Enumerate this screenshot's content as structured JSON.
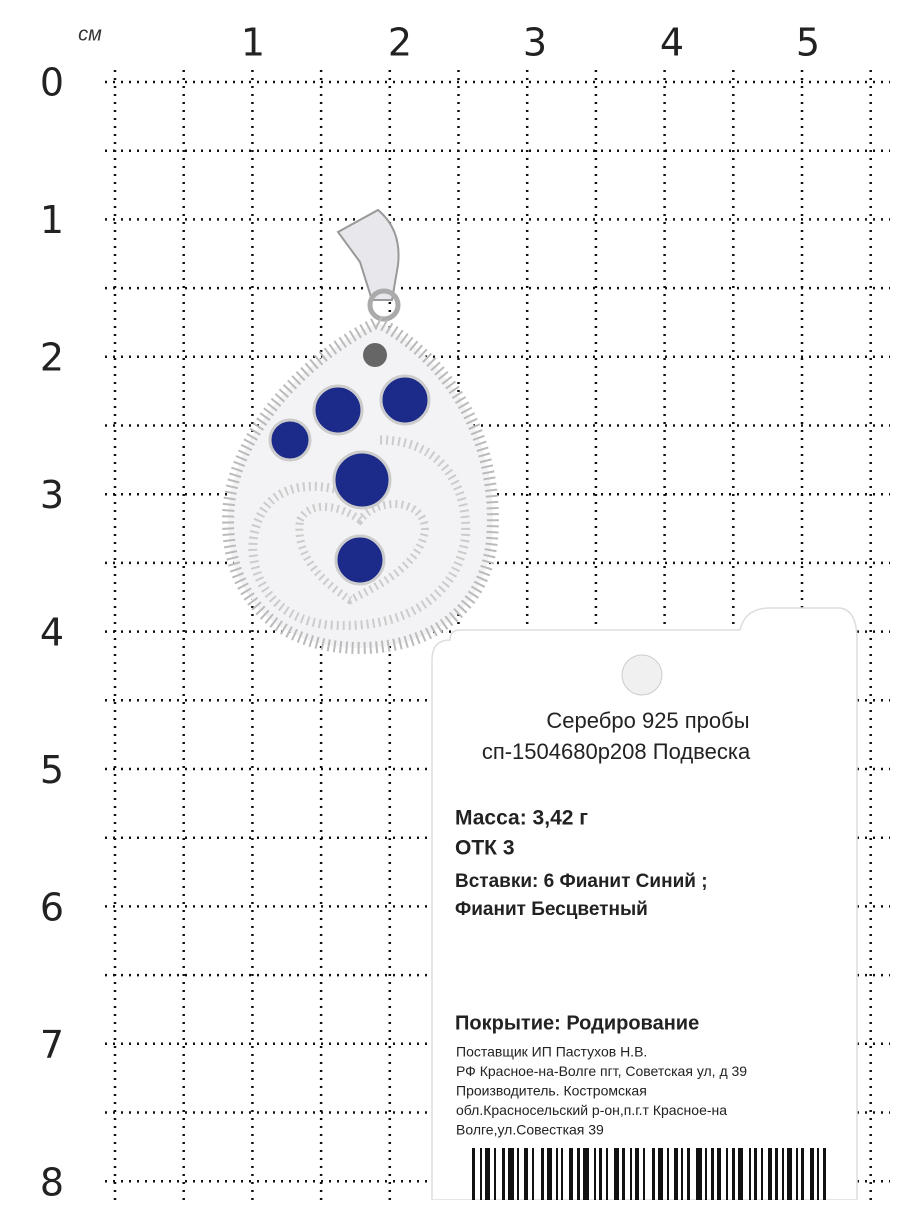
{
  "ruler": {
    "unit": "см",
    "top": [
      "1",
      "2",
      "3",
      "4",
      "5"
    ],
    "left": [
      "0",
      "1",
      "2",
      "3",
      "4",
      "5",
      "6",
      "7",
      "8"
    ]
  },
  "tag": {
    "title_lines": [
      "Серебро 925 пробы",
      "сп-1504680р208 Подвеска"
    ],
    "mass": "Масса: 3,42 г",
    "otk": "ОТК 3",
    "inserts": [
      "Вставки: 6 Фианит Синий ;",
      "Фианит Бесцветный"
    ],
    "coating": "Покрытие: Родирование",
    "supplier_lines": [
      "Поставщик ИП Пастухов Н.В.",
      "РФ Красное-на-Волге пгт, Советская ул, д 39",
      "Производитель. Костромская",
      "обл.Красносельский р-он,п.г.т Красное-на",
      "Волге,ул.Совесткая 39"
    ]
  }
}
